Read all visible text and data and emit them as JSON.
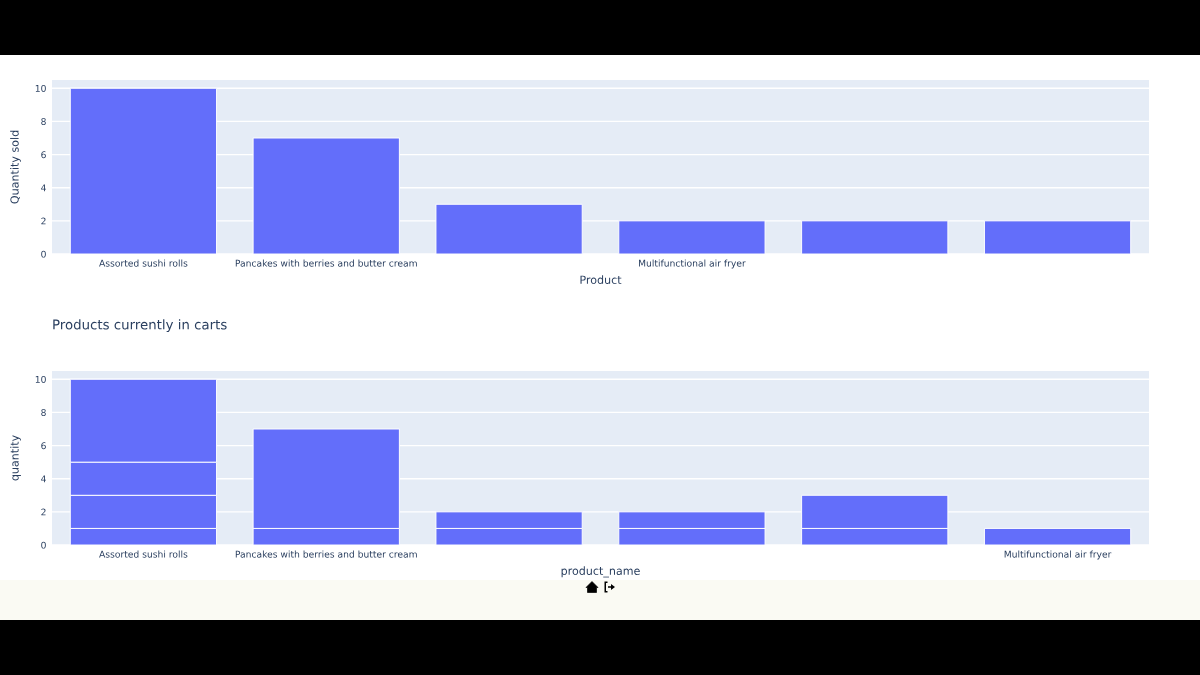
{
  "chart_data": [
    {
      "type": "bar",
      "categories": [
        "Assorted sushi rolls",
        "Pancakes with berries and butter cream",
        null,
        "Multifunctional air fryer",
        null,
        null
      ],
      "values": [
        10,
        7,
        3,
        2,
        2,
        2
      ],
      "color": "#636efa",
      "xlabel": "Product",
      "ylabel": "Quantity sold",
      "ylim": [
        0,
        10.5
      ],
      "yticks": [
        0,
        2,
        4,
        6,
        8,
        10
      ],
      "grid": "y"
    },
    {
      "type": "bar",
      "title": "Products currently in carts",
      "categories": [
        "Assorted sushi rolls",
        "Pancakes with berries and butter cream",
        null,
        null,
        null,
        "Multifunctional air fryer"
      ],
      "stacked": true,
      "series": [
        {
          "color": "#636efa",
          "values": [
            1,
            1,
            1,
            1,
            1,
            1
          ]
        },
        {
          "color": "#636efa",
          "values": [
            2,
            6,
            1,
            1,
            2,
            null
          ]
        },
        {
          "color": "#636efa",
          "values": [
            2,
            null,
            null,
            null,
            null,
            null
          ]
        },
        {
          "color": "#636efa",
          "values": [
            5,
            null,
            null,
            null,
            null,
            null
          ]
        }
      ],
      "xlabel": "product_name",
      "ylabel": "quantity",
      "ylim": [
        0,
        10.5
      ],
      "yticks": [
        0,
        2,
        4,
        6,
        8,
        10
      ],
      "grid": "y"
    }
  ]
}
